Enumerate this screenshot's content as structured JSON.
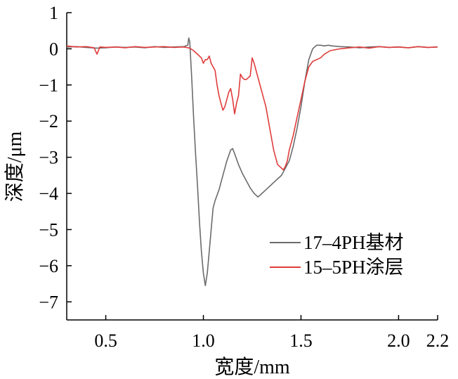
{
  "chart_data": {
    "type": "line",
    "title": "",
    "xlabel": "宽度/mm",
    "ylabel": "深度/μm",
    "xlim": [
      0.3,
      2.2
    ],
    "ylim": [
      -7.5,
      1
    ],
    "x_ticks": [
      0.5,
      1.0,
      1.5,
      2.0,
      2.2
    ],
    "x_tick_labels": [
      "0.5",
      "1.0",
      "1.5",
      "2.0",
      "2.2"
    ],
    "y_ticks": [
      1,
      0,
      -1,
      -2,
      -3,
      -4,
      -5,
      -6,
      -7
    ],
    "y_tick_labels": [
      "1",
      "0",
      "−1",
      "−2",
      "−3",
      "−4",
      "−5",
      "−6",
      "−7"
    ],
    "grid": false,
    "legend_position": "lower-right",
    "series": [
      {
        "name": "17–4PH基材",
        "color": "#6b6b6b",
        "x": [
          0.3,
          0.35,
          0.4,
          0.45,
          0.5,
          0.55,
          0.6,
          0.65,
          0.7,
          0.75,
          0.8,
          0.85,
          0.9,
          0.92,
          0.925,
          0.93,
          0.94,
          0.95,
          0.96,
          0.97,
          0.98,
          0.99,
          1.0,
          1.01,
          1.02,
          1.03,
          1.04,
          1.05,
          1.06,
          1.08,
          1.1,
          1.12,
          1.14,
          1.15,
          1.16,
          1.18,
          1.2,
          1.22,
          1.24,
          1.26,
          1.28,
          1.3,
          1.32,
          1.34,
          1.36,
          1.38,
          1.4,
          1.41,
          1.42,
          1.44,
          1.46,
          1.48,
          1.5,
          1.52,
          1.54,
          1.56,
          1.57,
          1.58,
          1.6,
          1.62,
          1.64,
          1.66,
          1.7,
          1.75,
          1.8,
          1.85,
          1.9,
          1.95,
          2.0,
          2.05,
          2.1,
          2.15,
          2.2
        ],
        "y": [
          0.05,
          0.06,
          0.04,
          0.02,
          0.03,
          0.05,
          0.04,
          0.05,
          0.03,
          0.06,
          0.04,
          0.05,
          0.06,
          0.1,
          0.3,
          0.2,
          -0.8,
          -1.9,
          -2.9,
          -3.8,
          -4.8,
          -5.6,
          -6.2,
          -6.55,
          -6.2,
          -5.6,
          -5.0,
          -4.4,
          -4.2,
          -3.9,
          -3.5,
          -3.1,
          -2.8,
          -2.76,
          -2.9,
          -3.2,
          -3.45,
          -3.65,
          -3.85,
          -4.0,
          -4.1,
          -4.0,
          -3.9,
          -3.8,
          -3.7,
          -3.6,
          -3.5,
          -3.4,
          -3.3,
          -3.1,
          -2.7,
          -2.2,
          -1.6,
          -0.9,
          -0.3,
          0.0,
          0.05,
          0.1,
          0.1,
          0.08,
          0.1,
          0.08,
          0.06,
          0.05,
          0.03,
          0.05,
          0.06,
          0.04,
          0.05,
          0.03,
          0.06,
          0.04,
          0.05
        ]
      },
      {
        "name": "15–5PH涂层",
        "color": "#e03c3c",
        "x": [
          0.3,
          0.35,
          0.4,
          0.44,
          0.455,
          0.47,
          0.5,
          0.55,
          0.6,
          0.65,
          0.7,
          0.75,
          0.8,
          0.85,
          0.9,
          0.93,
          0.95,
          0.97,
          0.99,
          1.0,
          1.01,
          1.02,
          1.03,
          1.04,
          1.05,
          1.06,
          1.07,
          1.08,
          1.09,
          1.1,
          1.11,
          1.12,
          1.13,
          1.14,
          1.15,
          1.155,
          1.16,
          1.17,
          1.18,
          1.19,
          1.2,
          1.21,
          1.22,
          1.24,
          1.25,
          1.26,
          1.28,
          1.3,
          1.32,
          1.34,
          1.36,
          1.38,
          1.4,
          1.41,
          1.42,
          1.43,
          1.44,
          1.46,
          1.48,
          1.5,
          1.52,
          1.54,
          1.56,
          1.58,
          1.6,
          1.62,
          1.65,
          1.7,
          1.75,
          1.8,
          1.85,
          1.9,
          1.95,
          2.0,
          2.05,
          2.1,
          2.15,
          2.2
        ],
        "y": [
          0.08,
          0.05,
          0.06,
          0.03,
          -0.15,
          0.05,
          0.04,
          0.05,
          0.03,
          0.06,
          0.04,
          0.05,
          0.06,
          0.04,
          0.05,
          0.02,
          -0.05,
          -0.15,
          -0.25,
          -0.4,
          -0.3,
          -0.3,
          -0.2,
          -0.4,
          -0.5,
          -0.6,
          -1.0,
          -1.3,
          -1.5,
          -1.7,
          -1.6,
          -1.4,
          -1.2,
          -1.1,
          -1.4,
          -1.6,
          -1.8,
          -1.5,
          -1.3,
          -0.7,
          -0.8,
          -0.85,
          -0.85,
          -0.75,
          -0.25,
          -0.4,
          -0.8,
          -1.2,
          -1.6,
          -2.2,
          -2.8,
          -3.2,
          -3.3,
          -3.35,
          -3.25,
          -3.1,
          -2.8,
          -2.4,
          -1.9,
          -1.4,
          -0.9,
          -0.5,
          -0.35,
          -0.3,
          -0.25,
          -0.15,
          -0.05,
          0.0,
          0.03,
          0.05,
          0.02,
          0.06,
          0.04,
          0.05,
          0.03,
          0.06,
          0.04,
          0.05
        ]
      }
    ]
  }
}
